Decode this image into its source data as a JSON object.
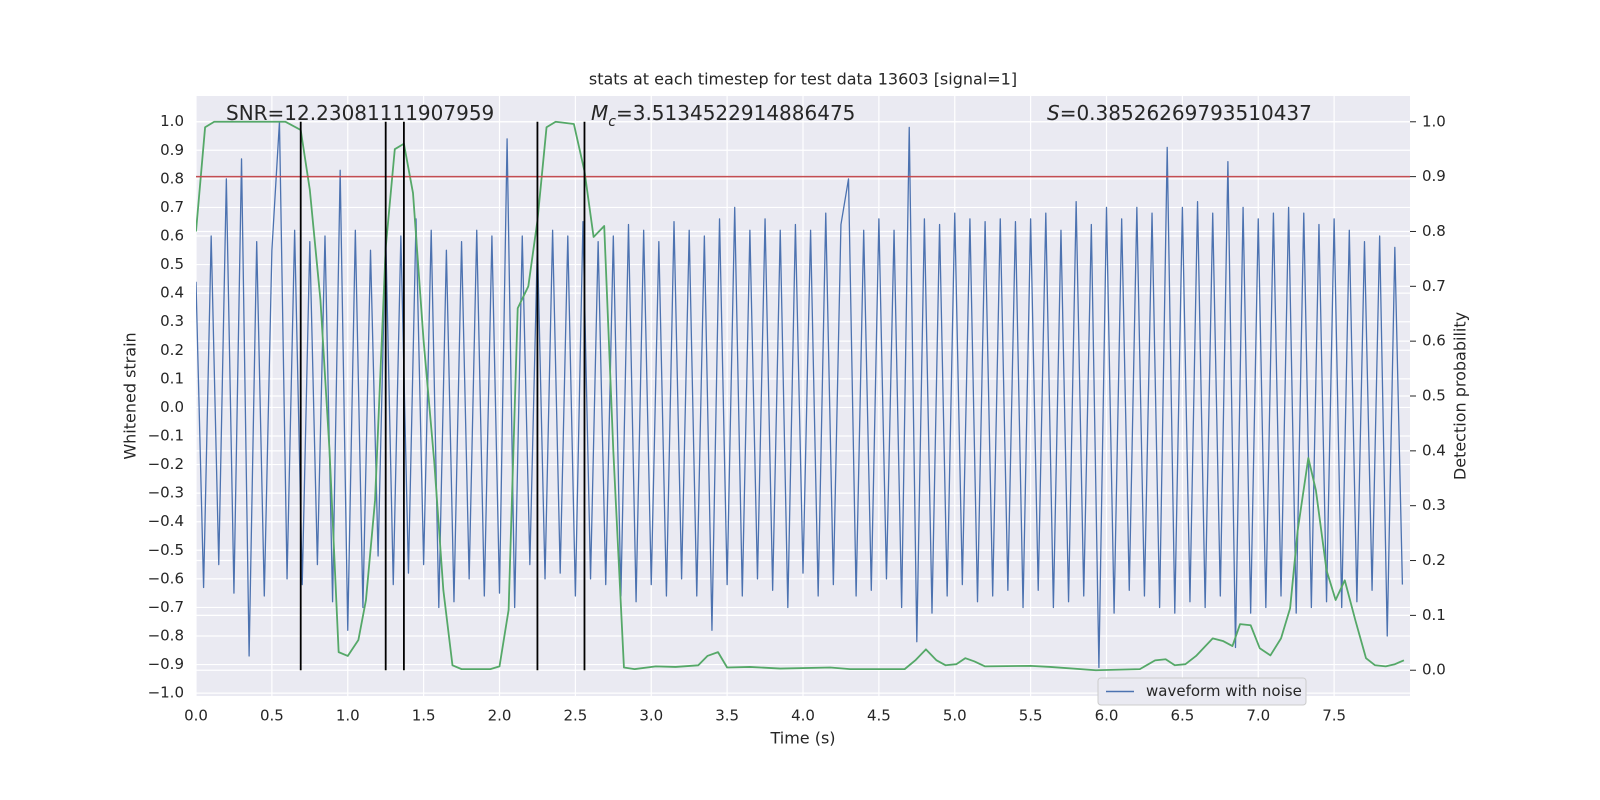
{
  "chart_data": {
    "type": "line",
    "title": "stats at each timestep for test data 13603 [signal=1]",
    "xlabel": "Time (s)",
    "ylabel": "Whitened strain",
    "y2label": "Detection probability",
    "xlim": [
      0,
      8
    ],
    "ylim": [
      -1.01,
      1.09
    ],
    "y2lim": [
      -0.047,
      1.047
    ],
    "xticks": [
      {
        "value": 0,
        "label": "0.0"
      },
      {
        "value": 0.5,
        "label": "0.5"
      },
      {
        "value": 1,
        "label": "1.0"
      },
      {
        "value": 1.5,
        "label": "1.5"
      },
      {
        "value": 2,
        "label": "2.0"
      },
      {
        "value": 2.5,
        "label": "2.5"
      },
      {
        "value": 3,
        "label": "3.0"
      },
      {
        "value": 3.5,
        "label": "3.5"
      },
      {
        "value": 4,
        "label": "4.0"
      },
      {
        "value": 4.5,
        "label": "4.5"
      },
      {
        "value": 5,
        "label": "5.0"
      },
      {
        "value": 5.5,
        "label": "5.5"
      },
      {
        "value": 6,
        "label": "6.0"
      },
      {
        "value": 6.5,
        "label": "6.5"
      },
      {
        "value": 7,
        "label": "7.0"
      },
      {
        "value": 7.5,
        "label": "7.5"
      }
    ],
    "yticks": [
      {
        "value": -1.0,
        "label": "−1.0"
      },
      {
        "value": -0.9,
        "label": "−0.9"
      },
      {
        "value": -0.8,
        "label": "−0.8"
      },
      {
        "value": -0.7,
        "label": "−0.7"
      },
      {
        "value": -0.6,
        "label": "−0.6"
      },
      {
        "value": -0.5,
        "label": "−0.5"
      },
      {
        "value": -0.4,
        "label": "−0.4"
      },
      {
        "value": -0.3,
        "label": "−0.3"
      },
      {
        "value": -0.2,
        "label": "−0.2"
      },
      {
        "value": -0.1,
        "label": "−0.1"
      },
      {
        "value": 0,
        "label": "0.0"
      },
      {
        "value": 0.1,
        "label": "0.1"
      },
      {
        "value": 0.2,
        "label": "0.2"
      },
      {
        "value": 0.3,
        "label": "0.3"
      },
      {
        "value": 0.4,
        "label": "0.4"
      },
      {
        "value": 0.5,
        "label": "0.5"
      },
      {
        "value": 0.6,
        "label": "0.6"
      },
      {
        "value": 0.7,
        "label": "0.7"
      },
      {
        "value": 0.8,
        "label": "0.8"
      },
      {
        "value": 0.9,
        "label": "0.9"
      },
      {
        "value": 1.0,
        "label": "1.0"
      }
    ],
    "y2ticks": [
      {
        "value": 0,
        "label": "0.0"
      },
      {
        "value": 0.1,
        "label": "0.1"
      },
      {
        "value": 0.2,
        "label": "0.2"
      },
      {
        "value": 0.3,
        "label": "0.3"
      },
      {
        "value": 0.4,
        "label": "0.4"
      },
      {
        "value": 0.5,
        "label": "0.5"
      },
      {
        "value": 0.6,
        "label": "0.6"
      },
      {
        "value": 0.7,
        "label": "0.7"
      },
      {
        "value": 0.8,
        "label": "0.8"
      },
      {
        "value": 0.9,
        "label": "0.9"
      },
      {
        "value": 1.0,
        "label": "1.0"
      }
    ],
    "grid": true,
    "legend": "best",
    "annotations": [
      {
        "text": "SNR=12.23081111907959"
      },
      {
        "italic": "M",
        "sub": "c",
        "text": "=3.5134522914886475"
      },
      {
        "italic": "S",
        "text": "=0.38526269793510437"
      }
    ],
    "hlines": [
      {
        "value": 0.9,
        "axis": "y2",
        "color": "#c44e52"
      }
    ],
    "vlines": {
      "x": [
        0.69,
        1.25,
        1.37,
        2.25,
        2.56
      ],
      "ymin": 0,
      "ymax": 1,
      "axis": "y2",
      "color": "#000000"
    },
    "series": [
      {
        "name": "waveform with noise",
        "color": "#4c72b0",
        "x": [
          0,
          0.05,
          0.1,
          0.15,
          0.2,
          0.25,
          0.3,
          0.35,
          0.4,
          0.45,
          0.5,
          0.55,
          0.6,
          0.65,
          0.7,
          0.75,
          0.8,
          0.85,
          0.9,
          0.95,
          1,
          1.05,
          1.1,
          1.15,
          1.2,
          1.25,
          1.3,
          1.35,
          1.4,
          1.45,
          1.5,
          1.55,
          1.6,
          1.65,
          1.7,
          1.75,
          1.8,
          1.85,
          1.9,
          1.95,
          2,
          2.05,
          2.1,
          2.15,
          2.2,
          2.25,
          2.3,
          2.35,
          2.4,
          2.45,
          2.5,
          2.55,
          2.6,
          2.65,
          2.7,
          2.75,
          2.8,
          2.85,
          2.9,
          2.95,
          3,
          3.05,
          3.1,
          3.15,
          3.2,
          3.25,
          3.3,
          3.35,
          3.4,
          3.45,
          3.5,
          3.55,
          3.6,
          3.65,
          3.7,
          3.75,
          3.8,
          3.85,
          3.9,
          3.95,
          4,
          4.05,
          4.1,
          4.15,
          4.2,
          4.25,
          4.3,
          4.35,
          4.4,
          4.45,
          4.5,
          4.55,
          4.6,
          4.65,
          4.7,
          4.75,
          4.8,
          4.85,
          4.9,
          4.95,
          5,
          5.05,
          5.1,
          5.15,
          5.2,
          5.25,
          5.3,
          5.35,
          5.4,
          5.45,
          5.5,
          5.55,
          5.6,
          5.65,
          5.7,
          5.75,
          5.8,
          5.85,
          5.9,
          5.95,
          6,
          6.05,
          6.1,
          6.15,
          6.2,
          6.25,
          6.3,
          6.35,
          6.4,
          6.45,
          6.5,
          6.55,
          6.6,
          6.65,
          6.7,
          6.75,
          6.8,
          6.85,
          6.9,
          6.95,
          7,
          7.05,
          7.1,
          7.15,
          7.2,
          7.25,
          7.3,
          7.35,
          7.4,
          7.45,
          7.5,
          7.55,
          7.6,
          7.65,
          7.7,
          7.75,
          7.8,
          7.85,
          7.9,
          7.95
        ],
        "values": [
          0.44,
          -0.63,
          0.6,
          -0.55,
          0.8,
          -0.65,
          0.87,
          -0.87,
          0.58,
          -0.66,
          0.55,
          1.0,
          -0.6,
          0.62,
          -0.62,
          0.58,
          -0.55,
          0.6,
          -0.68,
          0.83,
          -0.78,
          0.62,
          -0.7,
          0.55,
          -0.52,
          0.61,
          -0.62,
          0.6,
          -0.58,
          0.66,
          -0.55,
          0.62,
          -0.7,
          0.55,
          -0.68,
          0.58,
          -0.6,
          0.62,
          -0.66,
          0.6,
          -0.65,
          0.94,
          -0.7,
          0.6,
          -0.55,
          0.58,
          -0.6,
          0.62,
          -0.58,
          0.6,
          -0.66,
          0.65,
          -0.6,
          0.58,
          -0.62,
          0.6,
          -0.66,
          0.64,
          -0.68,
          0.62,
          -0.62,
          0.58,
          -0.66,
          0.65,
          -0.6,
          0.62,
          -0.66,
          0.6,
          -0.78,
          0.66,
          -0.62,
          0.7,
          -0.66,
          0.62,
          -0.6,
          0.66,
          -0.64,
          0.62,
          -0.7,
          0.64,
          -0.58,
          0.62,
          -0.66,
          0.68,
          -0.62,
          0.64,
          0.8,
          -0.66,
          0.62,
          -0.64,
          0.66,
          -0.6,
          0.62,
          -0.7,
          0.98,
          -0.82,
          0.66,
          -0.72,
          0.64,
          -0.66,
          0.68,
          -0.62,
          0.66,
          -0.68,
          0.65,
          -0.66,
          0.66,
          -0.64,
          0.65,
          -0.7,
          0.66,
          -0.64,
          0.68,
          -0.7,
          0.62,
          -0.68,
          0.72,
          -0.66,
          0.64,
          -0.91,
          0.7,
          -0.72,
          0.66,
          -0.64,
          0.7,
          -0.66,
          0.68,
          -0.7,
          0.91,
          -0.72,
          0.7,
          -0.68,
          0.72,
          -0.7,
          0.68,
          -0.66,
          0.86,
          -0.84,
          0.7,
          -0.72,
          0.66,
          -0.7,
          0.68,
          -0.66,
          0.7,
          -0.72,
          0.68,
          -0.7,
          0.64,
          -0.68,
          0.66,
          -0.7,
          0.62,
          -0.68,
          0.58,
          -0.64,
          0.6,
          -0.8,
          0.56,
          -0.62
        ]
      },
      {
        "color": "#55a868",
        "axis": "y2",
        "x": [
          0,
          0.06,
          0.12,
          0.35,
          0.59,
          0.69,
          0.75,
          0.82,
          0.88,
          0.94,
          1.0,
          1.07,
          1.12,
          1.18,
          1.25,
          1.31,
          1.37,
          1.43,
          1.5,
          1.57,
          1.63,
          1.69,
          1.75,
          1.94,
          2.0,
          2.06,
          2.12,
          2.19,
          2.25,
          2.31,
          2.37,
          2.49,
          2.56,
          2.62,
          2.69,
          2.75,
          2.82,
          2.89,
          3.03,
          3.16,
          3.31,
          3.37,
          3.44,
          3.5,
          3.65,
          3.85,
          4.18,
          4.31,
          4.67,
          4.74,
          4.81,
          4.88,
          4.94,
          5.01,
          5.07,
          5.13,
          5.2,
          5.5,
          5.63,
          5.93,
          6.22,
          6.32,
          6.39,
          6.45,
          6.52,
          6.59,
          6.7,
          6.77,
          6.83,
          6.88,
          6.95,
          7.01,
          7.08,
          7.15,
          7.21,
          7.26,
          7.33,
          7.38,
          7.45,
          7.51,
          7.57,
          7.64,
          7.71,
          7.77,
          7.84,
          7.9,
          7.96
        ],
        "values": [
          0.8,
          0.99,
          1.0,
          1.0,
          1.0,
          0.985,
          0.876,
          0.675,
          0.4,
          0.033,
          0.026,
          0.055,
          0.128,
          0.31,
          0.77,
          0.95,
          0.96,
          0.87,
          0.6,
          0.38,
          0.146,
          0.009,
          0.002,
          0.002,
          0.007,
          0.11,
          0.66,
          0.7,
          0.82,
          0.99,
          1.0,
          0.996,
          0.91,
          0.79,
          0.81,
          0.4,
          0.005,
          0.002,
          0.007,
          0.006,
          0.009,
          0.026,
          0.033,
          0.005,
          0.006,
          0.003,
          0.005,
          0.002,
          0.002,
          0.018,
          0.038,
          0.018,
          0.009,
          0.011,
          0.022,
          0.016,
          0.007,
          0.008,
          0.006,
          0.0,
          0.002,
          0.018,
          0.02,
          0.009,
          0.011,
          0.026,
          0.058,
          0.053,
          0.044,
          0.084,
          0.082,
          0.04,
          0.027,
          0.058,
          0.113,
          0.255,
          0.387,
          0.328,
          0.182,
          0.128,
          0.164,
          0.091,
          0.022,
          0.009,
          0.007,
          0.011,
          0.018
        ]
      }
    ]
  }
}
